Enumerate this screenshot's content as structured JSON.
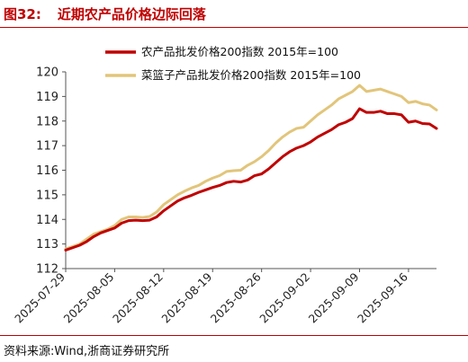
{
  "header": {
    "figure_number": "图32:",
    "title": "近期农产品价格边际回落"
  },
  "footer": {
    "source": "资料来源:Wind,浙商证券研究所"
  },
  "colors": {
    "accent": "#c00000",
    "series_red": "#c00000",
    "series_gold": "#e2c57a"
  },
  "chart_data": {
    "type": "line",
    "title": "",
    "xlabel": "",
    "ylabel": "",
    "ylim": [
      112,
      120
    ],
    "yticks": [
      112,
      113,
      114,
      115,
      116,
      117,
      118,
      119,
      120
    ],
    "xlim": [
      "2025-07-29",
      "2025-09-20"
    ],
    "xticks": [
      "2025-07-29",
      "2025-08-05",
      "2025-08-12",
      "2025-08-19",
      "2025-08-26",
      "2025-09-02",
      "2025-09-09",
      "2025-09-16"
    ],
    "grid": false,
    "legend_position": "top",
    "series": [
      {
        "name": "农产品批发价格200指数 2015年=100",
        "color": "#c00000",
        "x": [
          "2025-07-29",
          "2025-07-30",
          "2025-07-31",
          "2025-08-01",
          "2025-08-02",
          "2025-08-03",
          "2025-08-04",
          "2025-08-05",
          "2025-08-06",
          "2025-08-07",
          "2025-08-08",
          "2025-08-09",
          "2025-08-10",
          "2025-08-11",
          "2025-08-12",
          "2025-08-13",
          "2025-08-14",
          "2025-08-15",
          "2025-08-16",
          "2025-08-17",
          "2025-08-18",
          "2025-08-19",
          "2025-08-20",
          "2025-08-21",
          "2025-08-22",
          "2025-08-23",
          "2025-08-24",
          "2025-08-25",
          "2025-08-26",
          "2025-08-27",
          "2025-08-28",
          "2025-08-29",
          "2025-08-30",
          "2025-08-31",
          "2025-09-01",
          "2025-09-02",
          "2025-09-03",
          "2025-09-04",
          "2025-09-05",
          "2025-09-06",
          "2025-09-07",
          "2025-09-08",
          "2025-09-09",
          "2025-09-10",
          "2025-09-11",
          "2025-09-12",
          "2025-09-13",
          "2025-09-14",
          "2025-09-15",
          "2025-09-16",
          "2025-09-17",
          "2025-09-18",
          "2025-09-19",
          "2025-09-20"
        ],
        "values": [
          112.75,
          112.85,
          112.95,
          113.1,
          113.3,
          113.45,
          113.55,
          113.65,
          113.85,
          113.95,
          113.97,
          113.95,
          113.97,
          114.1,
          114.35,
          114.55,
          114.75,
          114.88,
          114.98,
          115.1,
          115.2,
          115.3,
          115.38,
          115.5,
          115.55,
          115.52,
          115.6,
          115.78,
          115.85,
          116.05,
          116.3,
          116.55,
          116.75,
          116.9,
          117.0,
          117.15,
          117.35,
          117.5,
          117.65,
          117.85,
          117.95,
          118.1,
          118.5,
          118.35,
          118.35,
          118.4,
          118.3,
          118.3,
          118.25,
          117.95,
          118.0,
          117.9,
          117.88,
          117.7
        ]
      },
      {
        "name": "菜篮子产品批发价格200指数 2015年=100",
        "color": "#e2c57a",
        "x": [
          "2025-07-29",
          "2025-07-30",
          "2025-07-31",
          "2025-08-01",
          "2025-08-02",
          "2025-08-03",
          "2025-08-04",
          "2025-08-05",
          "2025-08-06",
          "2025-08-07",
          "2025-08-08",
          "2025-08-09",
          "2025-08-10",
          "2025-08-11",
          "2025-08-12",
          "2025-08-13",
          "2025-08-14",
          "2025-08-15",
          "2025-08-16",
          "2025-08-17",
          "2025-08-18",
          "2025-08-19",
          "2025-08-20",
          "2025-08-21",
          "2025-08-22",
          "2025-08-23",
          "2025-08-24",
          "2025-08-25",
          "2025-08-26",
          "2025-08-27",
          "2025-08-28",
          "2025-08-29",
          "2025-08-30",
          "2025-08-31",
          "2025-09-01",
          "2025-09-02",
          "2025-09-03",
          "2025-09-04",
          "2025-09-05",
          "2025-09-06",
          "2025-09-07",
          "2025-09-08",
          "2025-09-09",
          "2025-09-10",
          "2025-09-11",
          "2025-09-12",
          "2025-09-13",
          "2025-09-14",
          "2025-09-15",
          "2025-09-16",
          "2025-09-17",
          "2025-09-18",
          "2025-09-19",
          "2025-09-20"
        ],
        "values": [
          112.8,
          112.9,
          113.0,
          113.2,
          113.4,
          113.5,
          113.6,
          113.75,
          114.0,
          114.1,
          114.1,
          114.08,
          114.12,
          114.3,
          114.6,
          114.8,
          115.0,
          115.15,
          115.28,
          115.38,
          115.55,
          115.68,
          115.78,
          115.95,
          115.98,
          116.0,
          116.2,
          116.35,
          116.55,
          116.8,
          117.1,
          117.35,
          117.55,
          117.7,
          117.75,
          118.0,
          118.25,
          118.45,
          118.65,
          118.9,
          119.05,
          119.2,
          119.45,
          119.2,
          119.25,
          119.3,
          119.2,
          119.1,
          119.0,
          118.75,
          118.8,
          118.7,
          118.65,
          118.45
        ]
      }
    ]
  }
}
